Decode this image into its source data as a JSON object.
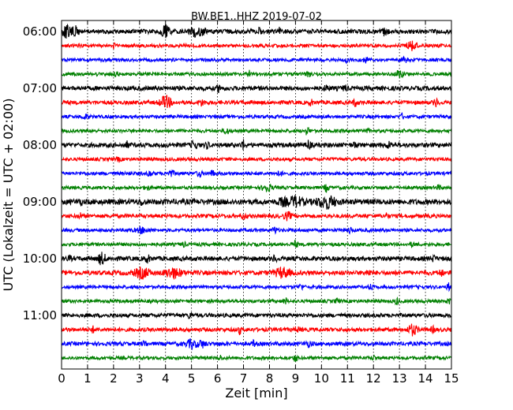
{
  "chart_data": {
    "type": "line",
    "title": "BW.BE1..HHZ 2019-07-02",
    "xlabel": "Zeit  [min]",
    "ylabel": "UTC (Lokalzeit = UTC + 02:00)",
    "xlim": [
      0,
      15
    ],
    "x_ticks": [
      0,
      1,
      2,
      3,
      4,
      5,
      6,
      7,
      8,
      9,
      10,
      11,
      12,
      13,
      14,
      15
    ],
    "x_tick_labels": [
      "0",
      "1",
      "2",
      "3",
      "4",
      "5",
      "6",
      "7",
      "8",
      "9",
      "10",
      "11",
      "12",
      "13",
      "14",
      "15"
    ],
    "grid": "vertical-dotted",
    "trace_interval_minutes": 15,
    "hour_labels": [
      {
        "label": "06:00",
        "trace_index": 0
      },
      {
        "label": "07:00",
        "trace_index": 4
      },
      {
        "label": "08:00",
        "trace_index": 8
      },
      {
        "label": "09:00",
        "trace_index": 12
      },
      {
        "label": "10:00",
        "trace_index": 16
      },
      {
        "label": "11:00",
        "trace_index": 20
      }
    ],
    "color_cycle": [
      "#000000",
      "#ff0000",
      "#0000ff",
      "#008000"
    ],
    "series": [
      {
        "start": "06:00",
        "color": "#000000",
        "noise": 0.8,
        "events": [
          [
            0.2,
            1.8,
            0.12
          ],
          [
            0.55,
            1.6,
            0.1
          ],
          [
            4.0,
            1.8,
            0.12
          ],
          [
            5.1,
            1.2,
            0.12
          ],
          [
            5.4,
            0.8,
            0.15
          ],
          [
            7.6,
            0.8,
            0.05
          ],
          [
            8.4,
            1.0,
            0.05
          ],
          [
            12.45,
            1.6,
            0.06
          ]
        ]
      },
      {
        "start": "06:15",
        "color": "#ff0000",
        "noise": 0.6,
        "events": [
          [
            2.0,
            1.0,
            0.04
          ],
          [
            13.45,
            1.9,
            0.12
          ]
        ]
      },
      {
        "start": "06:30",
        "color": "#0000ff",
        "noise": 0.6,
        "events": [
          [
            11.0,
            1.0,
            0.05
          ],
          [
            11.7,
            0.7,
            0.08
          ],
          [
            13.2,
            0.7,
            0.08
          ]
        ]
      },
      {
        "start": "06:45",
        "color": "#008000",
        "noise": 0.6,
        "events": [
          [
            2.1,
            0.7,
            0.05
          ],
          [
            7.2,
            1.1,
            0.05
          ],
          [
            9.5,
            0.9,
            0.05
          ],
          [
            13.0,
            1.4,
            0.08
          ],
          [
            15.0,
            0.7,
            0.04
          ]
        ]
      },
      {
        "start": "07:00",
        "color": "#000000",
        "noise": 0.8,
        "events": [
          [
            6.05,
            1.1,
            0.05
          ],
          [
            10.2,
            0.9,
            0.06
          ],
          [
            10.9,
            1.0,
            0.05
          ]
        ]
      },
      {
        "start": "07:15",
        "color": "#ff0000",
        "noise": 0.7,
        "events": [
          [
            4.0,
            2.0,
            0.15
          ],
          [
            5.4,
            0.9,
            0.08
          ],
          [
            9.6,
            0.8,
            0.05
          ],
          [
            11.3,
            1.1,
            0.06
          ],
          [
            14.4,
            1.3,
            0.06
          ]
        ]
      },
      {
        "start": "07:30",
        "color": "#0000ff",
        "noise": 0.6,
        "events": [
          [
            0.9,
            0.6,
            0.1
          ],
          [
            13.1,
            0.8,
            0.05
          ]
        ]
      },
      {
        "start": "07:45",
        "color": "#008000",
        "noise": 0.6,
        "events": [
          [
            6.35,
            1.2,
            0.06
          ],
          [
            9.45,
            1.2,
            0.06
          ],
          [
            11.8,
            0.6,
            0.05
          ]
        ]
      },
      {
        "start": "08:00",
        "color": "#000000",
        "noise": 0.8,
        "events": [
          [
            2.5,
            1.0,
            0.05
          ],
          [
            5.1,
            1.3,
            0.08
          ],
          [
            5.6,
            0.9,
            0.05
          ],
          [
            7.0,
            1.5,
            0.06
          ],
          [
            9.5,
            1.4,
            0.06
          ],
          [
            11.3,
            0.8,
            0.06
          ],
          [
            12.6,
            0.9,
            0.08
          ]
        ]
      },
      {
        "start": "08:15",
        "color": "#ff0000",
        "noise": 0.6,
        "events": [
          [
            2.2,
            0.7,
            0.05
          ]
        ]
      },
      {
        "start": "08:30",
        "color": "#0000ff",
        "noise": 0.6,
        "events": [
          [
            3.4,
            1.0,
            0.06
          ],
          [
            4.2,
            0.9,
            0.1
          ],
          [
            5.3,
            1.2,
            0.06
          ],
          [
            5.8,
            0.9,
            0.06
          ],
          [
            8.4,
            0.8,
            0.06
          ]
        ]
      },
      {
        "start": "08:45",
        "color": "#008000",
        "noise": 0.6,
        "events": [
          [
            3.3,
            0.6,
            0.08
          ],
          [
            7.9,
            1.3,
            0.12
          ],
          [
            10.2,
            1.3,
            0.06
          ],
          [
            14.5,
            0.7,
            0.06
          ]
        ]
      },
      {
        "start": "09:00",
        "color": "#000000",
        "noise": 1.0,
        "events": [
          [
            0.7,
            0.8,
            0.05
          ],
          [
            3.1,
            1.0,
            0.05
          ],
          [
            8.5,
            1.0,
            0.12
          ],
          [
            9.0,
            1.6,
            0.18
          ],
          [
            10.2,
            1.9,
            0.25
          ]
        ]
      },
      {
        "start": "09:15",
        "color": "#ff0000",
        "noise": 0.7,
        "events": [
          [
            0.7,
            0.9,
            0.05
          ],
          [
            7.0,
            0.8,
            0.08
          ],
          [
            8.7,
            1.2,
            0.1
          ],
          [
            12.5,
            0.7,
            0.06
          ]
        ]
      },
      {
        "start": "09:30",
        "color": "#0000ff",
        "noise": 0.6,
        "events": [
          [
            3.1,
            0.9,
            0.15
          ],
          [
            8.2,
            1.1,
            0.06
          ],
          [
            11.1,
            1.0,
            0.05
          ],
          [
            15.0,
            0.8,
            0.04
          ]
        ]
      },
      {
        "start": "09:45",
        "color": "#008000",
        "noise": 0.6,
        "events": [
          [
            4.7,
            0.7,
            0.05
          ],
          [
            9.0,
            1.1,
            0.06
          ],
          [
            13.5,
            0.6,
            0.06
          ]
        ]
      },
      {
        "start": "10:00",
        "color": "#000000",
        "noise": 0.8,
        "events": [
          [
            0.3,
            0.8,
            0.05
          ],
          [
            1.55,
            1.9,
            0.1
          ],
          [
            3.3,
            1.0,
            0.08
          ],
          [
            8.2,
            1.0,
            0.05
          ],
          [
            14.3,
            0.8,
            0.06
          ]
        ]
      },
      {
        "start": "10:15",
        "color": "#ff0000",
        "noise": 0.8,
        "events": [
          [
            3.1,
            1.7,
            0.2
          ],
          [
            4.3,
            1.6,
            0.22
          ],
          [
            8.5,
            1.6,
            0.2
          ],
          [
            11.8,
            0.7,
            0.08
          ],
          [
            14.6,
            1.0,
            0.05
          ]
        ]
      },
      {
        "start": "10:30",
        "color": "#0000ff",
        "noise": 0.6,
        "events": [
          [
            9.2,
            0.7,
            0.08
          ],
          [
            11.9,
            1.0,
            0.05
          ],
          [
            14.9,
            1.2,
            0.05
          ]
        ]
      },
      {
        "start": "10:45",
        "color": "#008000",
        "noise": 0.6,
        "events": [
          [
            8.6,
            1.1,
            0.05
          ],
          [
            10.6,
            0.7,
            0.06
          ],
          [
            12.9,
            1.0,
            0.05
          ],
          [
            14.9,
            0.9,
            0.05
          ]
        ]
      },
      {
        "start": "11:00",
        "color": "#000000",
        "noise": 0.7,
        "events": [
          [
            4.95,
            1.0,
            0.05
          ]
        ]
      },
      {
        "start": "11:15",
        "color": "#ff0000",
        "noise": 0.7,
        "events": [
          [
            1.2,
            0.9,
            0.05
          ],
          [
            6.85,
            1.4,
            0.04
          ],
          [
            9.1,
            0.6,
            0.06
          ],
          [
            13.5,
            1.8,
            0.12
          ],
          [
            14.3,
            0.8,
            0.06
          ]
        ]
      },
      {
        "start": "11:30",
        "color": "#0000ff",
        "noise": 0.7,
        "events": [
          [
            3.2,
            1.0,
            0.05
          ],
          [
            5.0,
            1.3,
            0.15
          ],
          [
            5.4,
            1.1,
            0.1
          ],
          [
            7.4,
            0.9,
            0.05
          ],
          [
            9.5,
            0.8,
            0.1
          ]
        ]
      },
      {
        "start": "11:45",
        "color": "#008000",
        "noise": 0.6,
        "events": [
          [
            6.1,
            0.8,
            0.05
          ],
          [
            9.0,
            1.2,
            0.05
          ],
          [
            12.0,
            0.6,
            0.06
          ]
        ]
      }
    ]
  }
}
